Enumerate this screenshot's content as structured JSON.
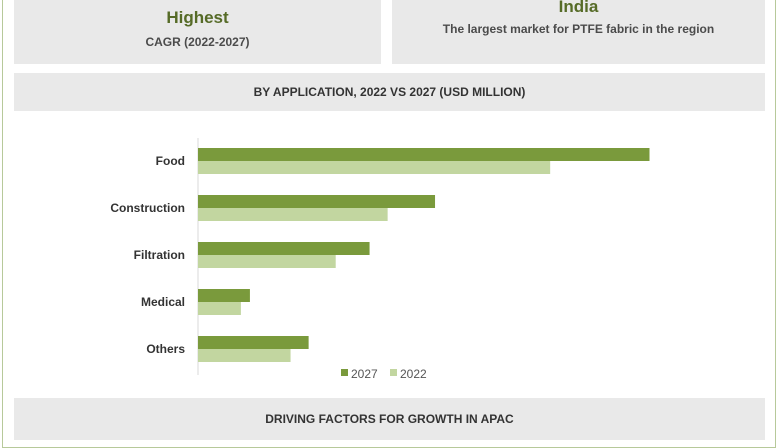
{
  "cards": {
    "left": {
      "title": "Highest",
      "subtitle": "CAGR (2022-2027)"
    },
    "right": {
      "title": "India",
      "subtitle": "The largest market for PTFE fabric in the region"
    }
  },
  "section_title": "BY APPLICATION, 2022 VS 2027 (USD MILLION)",
  "footer_title": "DRIVING FACTORS FOR GROWTH IN APAC",
  "colors": {
    "s2027": "#7a9a3c",
    "s2022": "#c2d6a0",
    "band": "#e9e9e9"
  },
  "chart_data": {
    "type": "bar",
    "orientation": "horizontal",
    "categories": [
      "Food",
      "Construction",
      "Filtration",
      "Medical",
      "Others"
    ],
    "series": [
      {
        "name": "2027",
        "values": [
          100,
          52.5,
          38,
          11.5,
          24.5
        ]
      },
      {
        "name": "2022",
        "values": [
          78,
          42,
          30.5,
          9.5,
          20.5
        ]
      }
    ],
    "xlim": [
      0,
      100
    ],
    "legend": "bottom-center",
    "grid": false
  }
}
